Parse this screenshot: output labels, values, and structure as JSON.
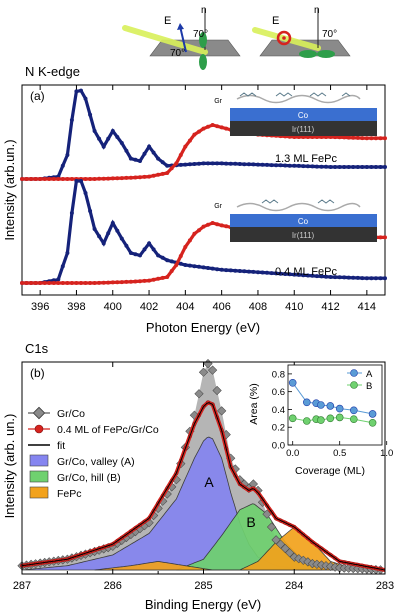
{
  "header": {
    "title_a": "N K-edge",
    "title_b": "C1s",
    "geometry_labels": {
      "e_vec": "E",
      "n_vec": "n",
      "angle1": "70°",
      "angle2": "70°",
      "angle3": "70°"
    }
  },
  "colors": {
    "red": "#d6231e",
    "navy": "#15227a",
    "gray": "#8a8a8a",
    "blue_fill": "#8585f0",
    "green_fill": "#6fd16f",
    "orange_fill": "#f2a21c",
    "lightblue": "#5a9bd6"
  },
  "chart_data": [
    {
      "id": "a",
      "panel_label": "(a)",
      "type": "line",
      "xlabel": "Photon Energy (eV)",
      "ylabel": "Intensity (arb.un.)",
      "xlim": [
        395,
        415
      ],
      "xticks": [
        396,
        398,
        400,
        402,
        404,
        406,
        408,
        410,
        412,
        414
      ],
      "annotations": [
        "1.3 ML FePc",
        "0.4 ML FePc"
      ],
      "inset_labels": {
        "gr": "Gr",
        "co": "Co",
        "ir": "Ir(111)"
      },
      "series": [
        {
          "group": "1.3 ML FePc",
          "color": "#15227a",
          "x": [
            395,
            396,
            397,
            397.5,
            397.8,
            398.0,
            398.2,
            398.5,
            399.0,
            399.5,
            400.0,
            400.5,
            401.0,
            401.5,
            402.0,
            402.5,
            403.0,
            404.0,
            405.0,
            406.0,
            408.0,
            410.0,
            412.0,
            414.0,
            415.0
          ],
          "y": [
            0.05,
            0.05,
            0.07,
            0.25,
            0.6,
            0.78,
            0.8,
            0.72,
            0.45,
            0.32,
            0.45,
            0.35,
            0.22,
            0.2,
            0.32,
            0.22,
            0.16,
            0.17,
            0.18,
            0.18,
            0.17,
            0.16,
            0.15,
            0.15,
            0.15
          ]
        },
        {
          "group": "1.3 ML FePc",
          "color": "#d6231e",
          "x": [
            395,
            397,
            399,
            401,
            402,
            403,
            403.5,
            404,
            404.5,
            405,
            405.5,
            406,
            407,
            408,
            410,
            412,
            414,
            415
          ],
          "y": [
            0.05,
            0.05,
            0.05,
            0.06,
            0.07,
            0.1,
            0.18,
            0.32,
            0.42,
            0.47,
            0.5,
            0.48,
            0.44,
            0.42,
            0.4,
            0.4,
            0.39,
            0.39
          ]
        },
        {
          "group": "0.4 ML FePc",
          "color": "#15227a",
          "x": [
            395,
            396,
            397,
            397.5,
            397.8,
            398.0,
            398.2,
            398.5,
            399.0,
            399.5,
            400.0,
            400.5,
            401.0,
            401.5,
            402.0,
            402.5,
            403.0,
            404.0,
            405.0,
            406.0,
            408.0,
            410.0,
            412.0,
            414.0,
            415.0
          ],
          "y": [
            0.05,
            0.05,
            0.08,
            0.3,
            0.7,
            0.9,
            0.92,
            0.8,
            0.5,
            0.38,
            0.55,
            0.42,
            0.3,
            0.28,
            0.38,
            0.28,
            0.24,
            0.2,
            0.18,
            0.16,
            0.14,
            0.12,
            0.1,
            0.09,
            0.09
          ]
        },
        {
          "group": "0.4 ML FePc",
          "color": "#d6231e",
          "x": [
            395,
            397,
            399,
            401,
            402,
            403,
            403.5,
            404,
            404.5,
            405,
            405.5,
            406,
            407,
            408,
            410,
            412,
            414,
            415
          ],
          "y": [
            0.05,
            0.05,
            0.05,
            0.06,
            0.07,
            0.1,
            0.2,
            0.35,
            0.46,
            0.52,
            0.55,
            0.53,
            0.5,
            0.47,
            0.45,
            0.44,
            0.43,
            0.43
          ]
        }
      ]
    },
    {
      "id": "b",
      "panel_label": "(b)",
      "type": "area",
      "xlabel": "Binding Energy (eV)",
      "ylabel": "Intensity (arb. un.)",
      "xlim": [
        287,
        283
      ],
      "xticks": [
        287,
        286,
        285,
        284,
        283
      ],
      "legend": [
        "Gr/Co",
        "0.4 ML of FePc/Gr/Co",
        "fit",
        "Gr/Co, valley (A)",
        "Gr/Co, hill (B)",
        "FePc"
      ],
      "legend_position": "top-left",
      "peak_labels": [
        "A",
        "B"
      ],
      "series": [
        {
          "name": "Gr/Co",
          "color": "#8a8a8a",
          "x": [
            287.0,
            286.5,
            286.0,
            285.6,
            285.3,
            285.1,
            285.0,
            284.95,
            284.9,
            284.8,
            284.7,
            284.6,
            284.5,
            284.45,
            284.4,
            284.3,
            284.2,
            284.0,
            283.8,
            283.5,
            283.0
          ],
          "y": [
            0.02,
            0.05,
            0.11,
            0.22,
            0.42,
            0.72,
            0.92,
            0.96,
            0.93,
            0.74,
            0.52,
            0.42,
            0.38,
            0.4,
            0.37,
            0.26,
            0.14,
            0.06,
            0.03,
            0.01,
            0.0
          ]
        },
        {
          "name": "0.4 ML of FePc/Gr/Co",
          "color": "#d6231e",
          "x": [
            287.0,
            286.5,
            286.0,
            285.6,
            285.3,
            285.1,
            285.0,
            284.95,
            284.9,
            284.8,
            284.7,
            284.6,
            284.5,
            284.45,
            284.4,
            284.3,
            284.2,
            284.0,
            283.8,
            283.5,
            283.0
          ],
          "y": [
            0.02,
            0.05,
            0.12,
            0.24,
            0.45,
            0.68,
            0.76,
            0.78,
            0.77,
            0.65,
            0.48,
            0.4,
            0.37,
            0.38,
            0.36,
            0.3,
            0.24,
            0.2,
            0.13,
            0.04,
            0.0
          ]
        },
        {
          "name": "Gr/Co, valley (A)",
          "color": "#8585f0",
          "x": [
            287.0,
            286.5,
            286.0,
            285.6,
            285.3,
            285.1,
            285.0,
            284.95,
            284.9,
            284.8,
            284.7,
            284.6,
            284.5,
            284.4,
            284.2,
            284.0,
            283.5,
            283.0
          ],
          "y": [
            0.0,
            0.02,
            0.07,
            0.17,
            0.33,
            0.52,
            0.6,
            0.62,
            0.61,
            0.52,
            0.36,
            0.22,
            0.12,
            0.06,
            0.02,
            0.01,
            0.0,
            0.0
          ]
        },
        {
          "name": "Gr/Co, hill (B)",
          "color": "#6fd16f",
          "x": [
            285.3,
            285.0,
            284.8,
            284.6,
            284.45,
            284.3,
            284.1,
            283.9,
            283.7
          ],
          "y": [
            0.0,
            0.05,
            0.16,
            0.28,
            0.31,
            0.26,
            0.13,
            0.04,
            0.0
          ]
        },
        {
          "name": "FePc",
          "color": "#f2a21c",
          "x": [
            286.2,
            285.8,
            285.5,
            285.2,
            284.9,
            284.6,
            284.4,
            284.2,
            284.0,
            283.8,
            283.6,
            283.3
          ],
          "y": [
            0.0,
            0.02,
            0.04,
            0.02,
            0.0,
            0.0,
            0.04,
            0.13,
            0.2,
            0.13,
            0.04,
            0.0
          ]
        }
      ],
      "inset": {
        "type": "scatter",
        "xlabel": "Coverage (ML)",
        "ylabel": "Area (%)",
        "xlim": [
          -0.05,
          0.95
        ],
        "ylim": [
          0.0,
          0.9
        ],
        "xticks": [
          "0.0",
          "0.5",
          "1.0"
        ],
        "yticks": [
          "0.0",
          "0.2",
          "0.4",
          "0.6",
          "0.8"
        ],
        "legend_position": "top-right",
        "series": [
          {
            "name": "A",
            "color": "#5a9bd6",
            "x": [
              0.0,
              0.15,
              0.25,
              0.3,
              0.4,
              0.5,
              0.65,
              0.85
            ],
            "y": [
              0.7,
              0.48,
              0.47,
              0.45,
              0.44,
              0.41,
              0.39,
              0.35
            ]
          },
          {
            "name": "B",
            "color": "#6fd16f",
            "x": [
              0.0,
              0.15,
              0.25,
              0.3,
              0.4,
              0.5,
              0.65,
              0.85
            ],
            "y": [
              0.3,
              0.27,
              0.29,
              0.28,
              0.3,
              0.31,
              0.29,
              0.25
            ]
          }
        ]
      }
    }
  ]
}
